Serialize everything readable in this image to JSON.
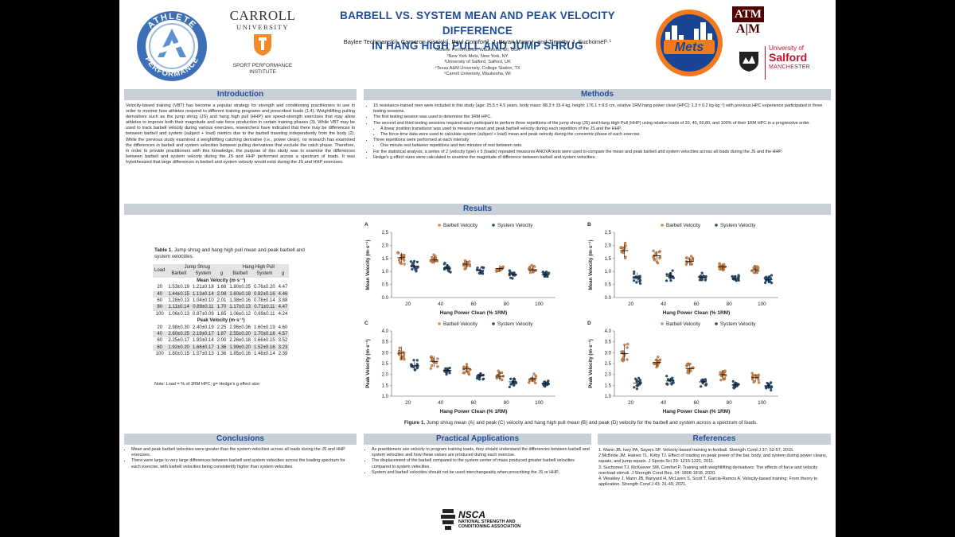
{
  "header": {
    "title_line1": "BARBELL VS. SYSTEM MEAN AND PEAK VELOCITY DIFFERENCE",
    "title_line2": "IN HANG HIGH PULL AND JUMP SHRUG",
    "authors": "Baylee Techmanski¹, Cameron Kissick², Paul Comfort³, J. Bryan Mann⁴, and Timothy J. Suchomel³·⁵",
    "affiliations": [
      "¹Athlete Performance, Waukesha, WI, USA",
      "²New York Mets, New York, NY",
      "³University of Salford, Salford, UK",
      "⁴Texas A&M University, College Station, TX",
      "⁵Carroll University, Waukesha, WI"
    ]
  },
  "logos": {
    "athlete_top": "ATHLETE",
    "athlete_bottom": "PERFORMANCE",
    "carroll_name": "CARROLL",
    "carroll_sub": "UNIVERSITY",
    "sport_perf_1": "SPORT PERFORMANCE",
    "sport_perf_2": "INSTITUTE",
    "mets": "Mets",
    "tamu_top": "ATM",
    "tamu": "A|M",
    "salford_1": "University of",
    "salford_2": "Salford",
    "salford_3": "MANCHESTER",
    "nsca": "NSCA",
    "nsca_1": "NATIONAL STRENGTH AND",
    "nsca_2": "CONDITIONING ASSOCIATION"
  },
  "introduction": {
    "heading": "Introduction",
    "text": "Velocity-based training (VBT) has become a popular strategy for strength and conditioning practitioners to use in order to monitor how athletes respond to different training programs and prescribed loads (1,4). Weightlifting pulling derivatives such as the jump shrug (JS) and hang high pull (HHP) are speed-strength exercises that may allow athletes to improve both their magnitude and rate force production in certain training phases (3). While VBT may be used to track barbell velocity during various exercises, researchers have indicated that there may be differences in between barbell and system (subject + load) metrics due to the barbell traveling independently from the body (2). While the previous study examined a weightlifting catching derivative (i.e., power clean), no research has examined the differences in barbell and system velocities between pulling derivatives that exclude the catch phase. Therefore, in order to provide practitioners with this knowledge, the purpose of this study was to examine the differences between barbell and system velocity during the JS and HHP performed across a spectrum of loads. It was hypothesized that large differences in barbell and system velocity would exist during the JS and HHP exercises."
  },
  "methods": {
    "heading": "Methods",
    "items": [
      "15 resistance-trained men were included in this study (age: 25.5 ± 4.5 years, body mass: 88.3 ± 15.4 kg, height: 176.1 ± 8.5 cm, relative 1RM hang power clean [HPC]: 1.3 ± 0.2 kg·kg⁻¹) with previous HPC experience participated in three testing sessions.",
      "The first testing session was used to determine the 1RM HPC.",
      "The second and third testing sessions required each participant to perform three repetitions of the jump shrug (JS) and Hang High Pull (HHP) using relative loads of 20, 40, 60,80, and 100% of their 1RM HPC in a progressive order.",
      "A linear position transducer was used to measure mean and peak barbell velocity during each repetition of the JS and the HHP.",
      "The force-time data were used to calculate system (subject + load) mean and peak velocity during the concentric phase of each exercise.",
      "Three repetitions were performed at each intensity",
      "One minute rest between repetitions and two minutes of rest between sets.",
      "For the statistical analysis, a series of 2 (velocity type) x 5 (loads) repeated measures ANOVA tests were used to compare the mean and peak barbell and system velocities across all loads during the JS and the HHP.",
      "Hedge's g effect sizes were calculated to examine the magnitude of difference between barbell and system velocities."
    ]
  },
  "results": {
    "heading": "Results"
  },
  "table": {
    "caption_label": "Table 1.",
    "caption_text": "Jump shrug and hang high pull mean and peak barbell and system velocities.",
    "load_header": "Load",
    "group1": "Jump Shrug",
    "group2": "Hang High Pull",
    "sub_headers": [
      "Barbell",
      "System",
      "g",
      "Barbell",
      "System",
      "g"
    ],
    "sections": [
      {
        "title": "Mean Velocity (m·s⁻¹)",
        "rows": [
          [
            "20",
            "1.53±0.19",
            "1.21±0.18",
            "1.68",
            "1.80±0.25",
            "0.76±0.20",
            "4.47"
          ],
          [
            "40",
            "1.44±0.15",
            "1.13±0.14",
            "2.08",
            "1.60±0.18",
            "0.82±0.16",
            "4.46"
          ],
          [
            "60",
            "1.28±0.13",
            "1.04±0.10",
            "2.01",
            "1.38±0.16",
            "0.78±0.14",
            "3.88"
          ],
          [
            "80",
            "1.11±0.14",
            "0.89±0.11",
            "1.70",
            "1.17±0.13",
            "0.71±0.11",
            "4.47"
          ],
          [
            "100",
            "1.06±0.13",
            "0.87±0.09",
            "1.65",
            "1.06±0.12",
            "0.69±0.11",
            "4.24"
          ]
        ]
      },
      {
        "title": "Peak Velocity (m·s⁻¹)",
        "rows": [
          [
            "20",
            "2.98±0.30",
            "2.40±0.19",
            "2.25",
            "2.96±0.36",
            "1.60±0.19",
            "4.60"
          ],
          [
            "40",
            "2.60±0.25",
            "2.19±0.17",
            "1.87",
            "2.55±0.20",
            "1.70±0.16",
            "4.57"
          ],
          [
            "60",
            "2.25±0.17",
            "1.93±0.14",
            "2.00",
            "2.26±0.18",
            "1.66±0.15",
            "3.52"
          ],
          [
            "80",
            "1.92±0.20",
            "1.66±0.17",
            "1.36",
            "1.99±0.20",
            "1.52±0.16",
            "3.23"
          ],
          [
            "100",
            "1.80±0.15",
            "1.57±0.13",
            "1.36",
            "1.85±0.16",
            "1.48±0.14",
            "2.39"
          ]
        ]
      }
    ],
    "note": "Note: Load = % of 1RM HPC; g= Hedge's g effect size"
  },
  "chart_data": [
    {
      "panel": "A",
      "type": "scatter",
      "xlabel": "Hang Power Clean (% 1RM)",
      "ylabel": "Mean Velocity (m·s⁻¹)",
      "categories": [
        "20",
        "40",
        "60",
        "80",
        "100"
      ],
      "ylim": [
        0.0,
        2.5
      ],
      "yticks": [
        "0.0",
        "0.5",
        "1.0",
        "1.5",
        "2.0",
        "2.5"
      ],
      "series": [
        {
          "name": "Barbell Velocity",
          "color": "#e8873a",
          "values": [
            1.53,
            1.44,
            1.28,
            1.11,
            1.06
          ],
          "sd": [
            0.19,
            0.15,
            0.13,
            0.14,
            0.13
          ]
        },
        {
          "name": "System Velocity",
          "color": "#1f4e79",
          "values": [
            1.21,
            1.13,
            1.04,
            0.89,
            0.87
          ],
          "sd": [
            0.18,
            0.14,
            0.1,
            0.11,
            0.09
          ]
        }
      ]
    },
    {
      "panel": "B",
      "type": "scatter",
      "xlabel": "Hang Power Clean (% 1RM)",
      "ylabel": "Mean Velocity (m·s⁻¹)",
      "categories": [
        "20",
        "40",
        "60",
        "80",
        "100"
      ],
      "ylim": [
        0.0,
        2.5
      ],
      "yticks": [
        "0.0",
        "0.5",
        "1.0",
        "1.5",
        "2.0",
        "2.5"
      ],
      "series": [
        {
          "name": "Barbell Velocity",
          "color": "#e8873a",
          "values": [
            1.8,
            1.6,
            1.38,
            1.17,
            1.06
          ],
          "sd": [
            0.25,
            0.18,
            0.16,
            0.13,
            0.12
          ]
        },
        {
          "name": "System Velocity",
          "color": "#1f4e79",
          "values": [
            0.76,
            0.82,
            0.78,
            0.71,
            0.69
          ],
          "sd": [
            0.2,
            0.16,
            0.14,
            0.11,
            0.11
          ]
        }
      ]
    },
    {
      "panel": "C",
      "type": "scatter",
      "xlabel": "Hang Power Clean (% 1RM)",
      "ylabel": "Peak Velocity (m·s⁻¹)",
      "categories": [
        "20",
        "40",
        "60",
        "80",
        "100"
      ],
      "ylim": [
        1.0,
        4.0
      ],
      "yticks": [
        "1.0",
        "1.5",
        "2.0",
        "2.5",
        "3.0",
        "3.5",
        "4.0"
      ],
      "series": [
        {
          "name": "Barbell Velocity",
          "color": "#e8873a",
          "values": [
            2.98,
            2.6,
            2.25,
            1.92,
            1.8
          ],
          "sd": [
            0.3,
            0.25,
            0.17,
            0.2,
            0.15
          ]
        },
        {
          "name": "System Velocity",
          "color": "#1f4e79",
          "values": [
            2.4,
            2.19,
            1.93,
            1.66,
            1.57
          ],
          "sd": [
            0.19,
            0.17,
            0.14,
            0.17,
            0.13
          ]
        }
      ]
    },
    {
      "panel": "D",
      "type": "scatter",
      "xlabel": "Hang Power Clean (% 1RM)",
      "ylabel": "Peak Velocity (m·s⁻¹)",
      "categories": [
        "20",
        "40",
        "60",
        "80",
        "100"
      ],
      "ylim": [
        1.0,
        4.0
      ],
      "yticks": [
        "1.0",
        "1.5",
        "2.0",
        "2.5",
        "3.0",
        "3.5",
        "4.0"
      ],
      "series": [
        {
          "name": "Barbell Velocity",
          "color": "#e8873a",
          "values": [
            2.96,
            2.55,
            2.26,
            1.99,
            1.85
          ],
          "sd": [
            0.36,
            0.2,
            0.18,
            0.2,
            0.16
          ]
        },
        {
          "name": "System Velocity",
          "color": "#1f4e79",
          "values": [
            1.6,
            1.7,
            1.66,
            1.52,
            1.48
          ],
          "sd": [
            0.19,
            0.16,
            0.15,
            0.16,
            0.14
          ]
        }
      ]
    }
  ],
  "figure": {
    "caption_label": "Figure 1.",
    "caption_text": "Jump shrug mean (A) and peak (C) velocity and hang high pull mean (B) and peak (D) velocity for the barbell and system across a spectrum of loads."
  },
  "conclusions": {
    "heading": "Conclusions",
    "items": [
      "Mean and peak barbell velocities were greater than the system velocities across all loads during the JS and HHP exercises.",
      "There were large to very large differences between barbell and system velocities across the loading spectrum for each exercise, with barbell velocities being consistently higher than system velocities."
    ]
  },
  "practical": {
    "heading": "Practical Applications",
    "items": [
      "As practitioners use velocity to program training loads, they should understand the differences between barbell and system velocities and how these values are produced during each exercise.",
      "The displacement of the barbell compared to the system center of mass produced greater barbell velocities compared to system velocities.",
      "System and barbell velocities should not be used interchangeably when prescribing the JS or HHP."
    ]
  },
  "references": {
    "heading": "References",
    "items": [
      "1. Mann JB, Ivey PA, Sayers SP. Velocity-based training in football. Strength Cond J 37: 52-57, 2015.",
      "2.McBride JM, Haines TL, Kirby TJ. Effect of loading on peak power of the bar, body, and system during power cleans, squats, and jump squats. J Sports Sci 29: 1215-1221, 2011.",
      "3. Suchomel TJ, McKeever SM, Comfort P. Training with weightlifting derivatives: The effects of force and velocity overload stimuli. J Strength Cond Res, 34: 1808-1818, 2020.",
      "4. Weakley J, Mann JB, Banyard H, McLaren S, Scott T, Garcia-Ramos A. Velocity-based training: From theory to application. Strength Cond J 43: 31-49, 2021."
    ]
  }
}
